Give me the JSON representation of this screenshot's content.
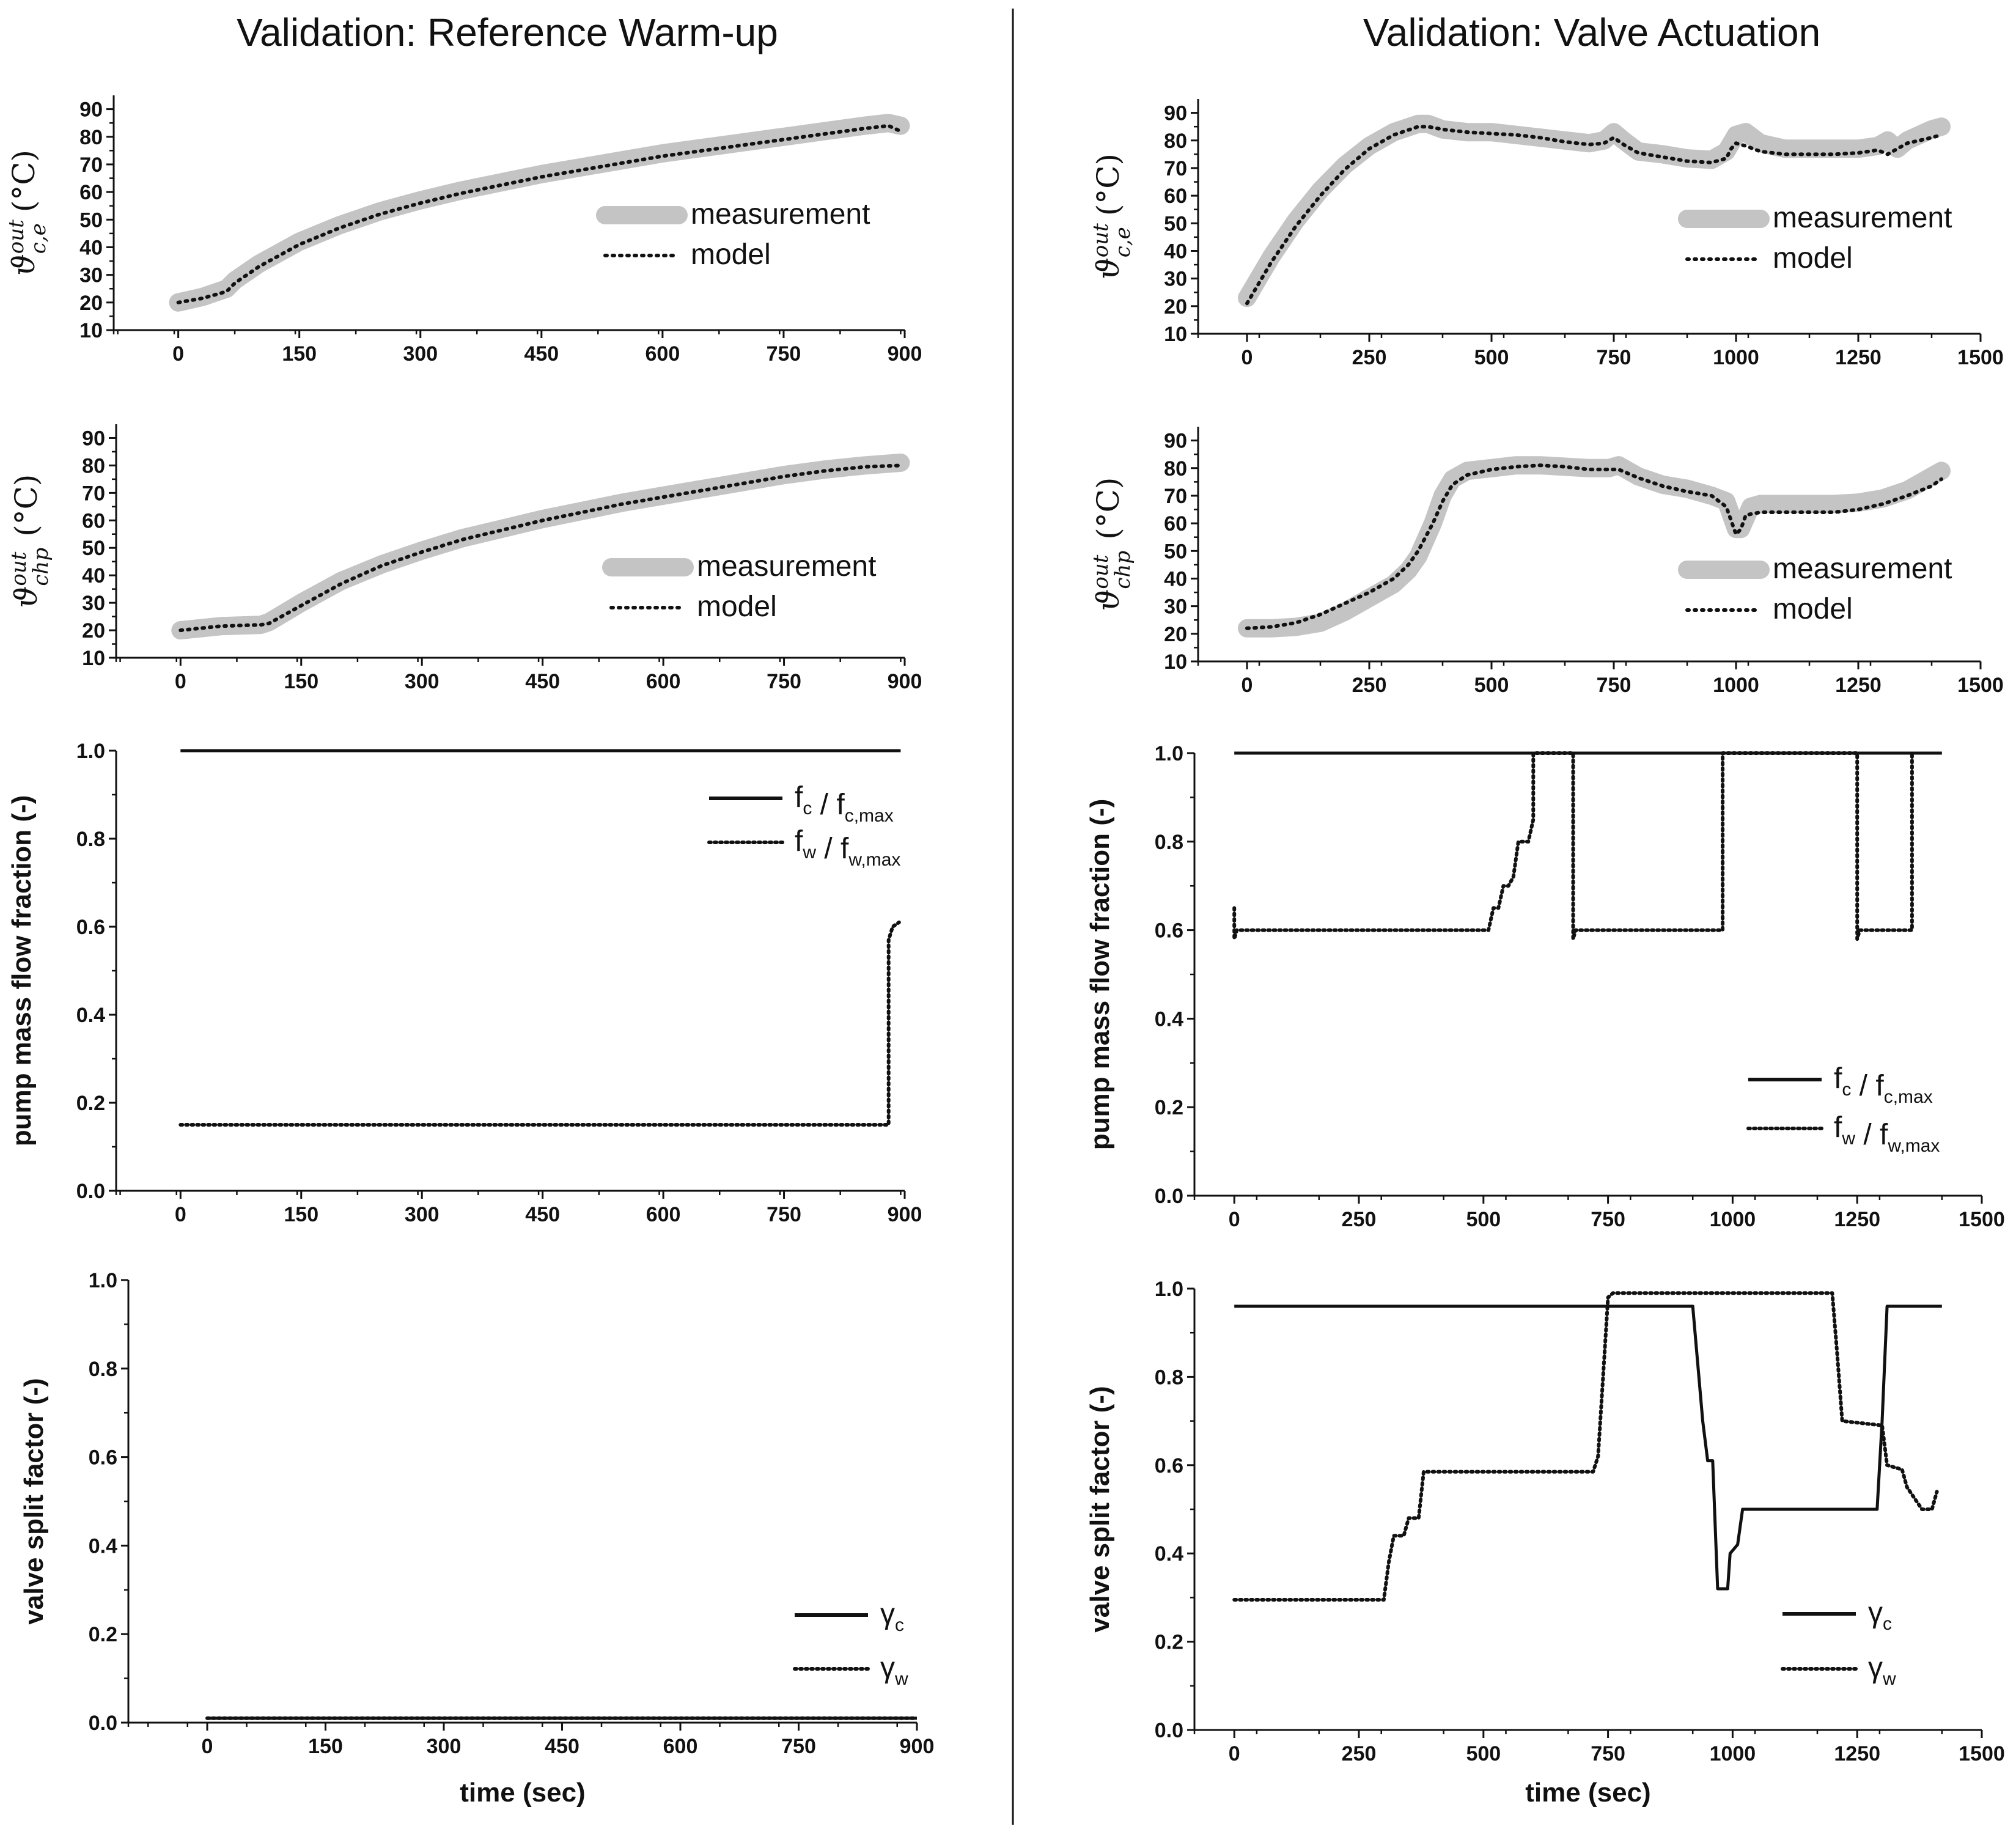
{
  "columns": [
    {
      "title": "Validation: Reference Warm-up"
    },
    {
      "title": "Validation: Valve Actuation"
    }
  ],
  "xlabel": "time (sec)",
  "chart_data": [
    {
      "id": "left-temp-ce",
      "type": "line",
      "column": 0,
      "row": 0,
      "ylabel": {
        "main": "ϑ",
        "sub": "c,e",
        "sup": "out",
        "unit": "(°C)"
      },
      "xlim": [
        -80,
        900
      ],
      "ylim": [
        10,
        95
      ],
      "xticks": [
        0,
        150,
        300,
        450,
        600,
        750,
        900
      ],
      "yticks": [
        10,
        20,
        30,
        40,
        50,
        60,
        70,
        80,
        90
      ],
      "legend": {
        "position": "right",
        "entries": [
          "measurement",
          "model"
        ]
      },
      "series": [
        {
          "name": "measurement",
          "style": "measurement",
          "x": [
            0,
            30,
            60,
            70,
            100,
            150,
            200,
            250,
            300,
            350,
            400,
            450,
            500,
            550,
            600,
            650,
            700,
            750,
            800,
            850,
            880,
            895
          ],
          "y": [
            20,
            22,
            25,
            28,
            34,
            42,
            48,
            53,
            57,
            60.5,
            63.5,
            66.5,
            69,
            71.5,
            74,
            76,
            78,
            80,
            82,
            84,
            85,
            84
          ]
        },
        {
          "name": "model",
          "style": "model",
          "x": [
            0,
            30,
            60,
            70,
            100,
            150,
            200,
            250,
            300,
            350,
            400,
            450,
            500,
            550,
            600,
            650,
            700,
            750,
            800,
            850,
            880,
            895
          ],
          "y": [
            20,
            21.5,
            24,
            27,
            33,
            41,
            47,
            52,
            56,
            59.5,
            62.5,
            65.5,
            68,
            70.5,
            73,
            75,
            77,
            79,
            81,
            83,
            84,
            82
          ]
        }
      ]
    },
    {
      "id": "left-temp-chp",
      "type": "line",
      "column": 0,
      "row": 1,
      "ylabel": {
        "main": "ϑ",
        "sub": "chp",
        "sup": "out",
        "unit": "(°C)"
      },
      "xlim": [
        -80,
        900
      ],
      "ylim": [
        10,
        95
      ],
      "xticks": [
        0,
        150,
        300,
        450,
        600,
        750,
        900
      ],
      "yticks": [
        10,
        20,
        30,
        40,
        50,
        60,
        70,
        80,
        90
      ],
      "legend": {
        "position": "right",
        "entries": [
          "measurement",
          "model"
        ]
      },
      "series": [
        {
          "name": "measurement",
          "style": "measurement",
          "x": [
            0,
            50,
            100,
            110,
            150,
            200,
            250,
            300,
            350,
            400,
            450,
            500,
            550,
            600,
            650,
            700,
            750,
            800,
            850,
            895
          ],
          "y": [
            20,
            21.5,
            22,
            23,
            30,
            38,
            44,
            49,
            53.5,
            57,
            60.5,
            63.5,
            66.5,
            69,
            71.5,
            74,
            76.5,
            78.5,
            80,
            81
          ]
        },
        {
          "name": "model",
          "style": "model",
          "x": [
            0,
            50,
            100,
            110,
            150,
            200,
            250,
            300,
            350,
            400,
            450,
            500,
            550,
            600,
            650,
            700,
            750,
            800,
            850,
            895
          ],
          "y": [
            20,
            21.5,
            22,
            22.5,
            29,
            37,
            43.5,
            48.5,
            53,
            56.5,
            60,
            63,
            66,
            68.5,
            71,
            73.5,
            76,
            78,
            79.5,
            80
          ]
        }
      ]
    },
    {
      "id": "left-pump",
      "type": "line",
      "column": 0,
      "row": 2,
      "ylabel": {
        "main": "pump mass flow fraction (-)"
      },
      "xlim": [
        -80,
        900
      ],
      "ylim": [
        0,
        1.0
      ],
      "xticks": [
        0,
        150,
        300,
        450,
        600,
        750,
        900
      ],
      "yticks": [
        0.0,
        0.2,
        0.4,
        0.6,
        0.8,
        1.0
      ],
      "legend": {
        "position": "top-right",
        "entries": [
          "f_c / f_c,max",
          "f_w / f_w,max"
        ]
      },
      "series": [
        {
          "name": "f_c / f_c,max",
          "style": "solid",
          "x": [
            0,
            895
          ],
          "y": [
            1.0,
            1.0
          ]
        },
        {
          "name": "f_w / f_w,max",
          "style": "dotted",
          "x": [
            0,
            880,
            880,
            885,
            893
          ],
          "y": [
            0.15,
            0.15,
            0.57,
            0.6,
            0.61
          ]
        }
      ]
    },
    {
      "id": "left-valve",
      "type": "line",
      "column": 0,
      "row": 3,
      "ylabel": {
        "main": "valve split factor (-)"
      },
      "xlim": [
        -100,
        900
      ],
      "ylim": [
        0,
        1.0
      ],
      "xticks": [
        0,
        150,
        300,
        450,
        600,
        750,
        900
      ],
      "yticks": [
        0.0,
        0.2,
        0.4,
        0.6,
        0.8,
        1.0
      ],
      "legend": {
        "position": "bottom-right",
        "entries": [
          "γc",
          "γw"
        ]
      },
      "series": [
        {
          "name": "γc",
          "style": "solid",
          "x": [
            0,
            900
          ],
          "y": [
            0.01,
            0.01
          ]
        },
        {
          "name": "γw",
          "style": "dotted",
          "x": [
            0,
            900
          ],
          "y": [
            0.01,
            0.01
          ]
        }
      ]
    },
    {
      "id": "right-temp-ce",
      "type": "line",
      "column": 1,
      "row": 0,
      "ylabel": {
        "main": "ϑ",
        "sub": "c,e",
        "sup": "out",
        "unit": "(°C)"
      },
      "xlim": [
        -100,
        1500
      ],
      "ylim": [
        10,
        95
      ],
      "xticks": [
        0,
        250,
        500,
        750,
        1000,
        1250,
        1500
      ],
      "yticks": [
        10,
        20,
        30,
        40,
        50,
        60,
        70,
        80,
        90
      ],
      "legend": {
        "position": "right",
        "entries": [
          "measurement",
          "model"
        ]
      },
      "series": [
        {
          "name": "measurement",
          "style": "measurement",
          "x": [
            0,
            50,
            100,
            150,
            200,
            250,
            300,
            350,
            370,
            400,
            450,
            500,
            550,
            600,
            650,
            700,
            730,
            750,
            770,
            800,
            850,
            900,
            950,
            980,
            1000,
            1020,
            1050,
            1100,
            1150,
            1200,
            1250,
            1290,
            1310,
            1330,
            1350,
            1400,
            1420
          ],
          "y": [
            23,
            38,
            51,
            62,
            71,
            78,
            83,
            86,
            86,
            84,
            83,
            83,
            82,
            81,
            80,
            79,
            80,
            83,
            80,
            76,
            75,
            73.5,
            73,
            76,
            82,
            83,
            79,
            77,
            77,
            77,
            77,
            78,
            80,
            77,
            80,
            84,
            85
          ]
        },
        {
          "name": "model",
          "style": "model",
          "x": [
            0,
            50,
            100,
            150,
            200,
            250,
            300,
            350,
            370,
            400,
            450,
            500,
            550,
            600,
            650,
            700,
            730,
            750,
            770,
            800,
            850,
            900,
            950,
            980,
            990,
            1000,
            1020,
            1050,
            1100,
            1150,
            1200,
            1250,
            1290,
            1310,
            1330,
            1350,
            1400,
            1420
          ],
          "y": [
            21,
            36,
            49,
            60,
            69.5,
            77,
            82,
            85,
            85,
            84,
            83,
            82.5,
            82,
            81,
            79.5,
            78.5,
            79,
            81,
            78.5,
            75.5,
            74,
            72.5,
            72,
            73.5,
            77,
            79,
            78,
            76,
            75,
            75,
            75,
            75.5,
            76.5,
            75,
            77,
            79,
            81,
            82
          ]
        }
      ]
    },
    {
      "id": "right-temp-chp",
      "type": "line",
      "column": 1,
      "row": 1,
      "ylabel": {
        "main": "ϑ",
        "sub": "chp",
        "sup": "out",
        "unit": "(°C)"
      },
      "xlim": [
        -100,
        1500
      ],
      "ylim": [
        10,
        95
      ],
      "xticks": [
        0,
        250,
        500,
        750,
        1000,
        1250,
        1500
      ],
      "yticks": [
        10,
        20,
        30,
        40,
        50,
        60,
        70,
        80,
        90
      ],
      "legend": {
        "position": "right",
        "entries": [
          "measurement",
          "model"
        ]
      },
      "series": [
        {
          "name": "measurement",
          "style": "measurement",
          "x": [
            0,
            50,
            100,
            150,
            200,
            250,
            300,
            330,
            350,
            380,
            400,
            420,
            450,
            500,
            550,
            600,
            650,
            700,
            740,
            760,
            800,
            850,
            900,
            950,
            980,
            1000,
            1010,
            1030,
            1050,
            1100,
            1150,
            1200,
            1250,
            1300,
            1350,
            1400,
            1420
          ],
          "y": [
            22,
            22,
            22.5,
            24,
            28,
            33,
            38,
            43,
            48,
            60,
            70,
            76,
            79,
            80,
            81,
            81,
            80.5,
            80,
            80,
            81,
            77,
            74,
            72.5,
            70,
            68,
            58,
            58,
            66,
            67,
            67,
            67,
            67,
            67.5,
            69,
            72,
            77,
            79
          ]
        },
        {
          "name": "model",
          "style": "model",
          "x": [
            0,
            50,
            100,
            150,
            200,
            250,
            300,
            330,
            350,
            380,
            400,
            420,
            450,
            500,
            550,
            600,
            650,
            700,
            740,
            760,
            800,
            850,
            900,
            950,
            980,
            1000,
            1010,
            1020,
            1050,
            1100,
            1150,
            1200,
            1250,
            1300,
            1350,
            1400,
            1420
          ],
          "y": [
            22,
            22.5,
            24,
            27,
            31,
            35,
            40,
            45,
            50,
            60,
            68,
            74,
            77.5,
            79.5,
            80.5,
            81,
            80.5,
            79.5,
            79.5,
            79.5,
            76.5,
            73.5,
            71.5,
            70,
            66,
            56,
            58,
            63,
            64,
            64,
            64,
            64,
            65,
            67,
            70,
            73.5,
            76
          ]
        }
      ]
    },
    {
      "id": "right-pump",
      "type": "line",
      "column": 1,
      "row": 2,
      "ylabel": {
        "main": "pump mass flow fraction (-)"
      },
      "xlim": [
        -80,
        1500
      ],
      "ylim": [
        0,
        1.0
      ],
      "xticks": [
        0,
        250,
        500,
        750,
        1000,
        1250,
        1500
      ],
      "yticks": [
        0.0,
        0.2,
        0.4,
        0.6,
        0.8,
        1.0
      ],
      "legend": {
        "position": "lower-right",
        "entries": [
          "f_c / f_c,max",
          "f_w / f_w,max"
        ]
      },
      "series": [
        {
          "name": "f_c / f_c,max",
          "style": "solid",
          "x": [
            0,
            1420
          ],
          "y": [
            1.0,
            1.0
          ]
        },
        {
          "name": "f_w / f_w,max",
          "style": "dotted",
          "x": [
            0,
            0,
            5,
            510,
            520,
            530,
            540,
            550,
            560,
            570,
            580,
            590,
            600,
            600,
            680,
            680,
            685,
            980,
            980,
            1250,
            1250,
            1255,
            1360,
            1360
          ],
          "y": [
            0.65,
            0.58,
            0.6,
            0.6,
            0.65,
            0.65,
            0.7,
            0.7,
            0.72,
            0.8,
            0.8,
            0.8,
            0.85,
            1.0,
            1.0,
            0.58,
            0.6,
            0.6,
            1.0,
            1.0,
            0.58,
            0.6,
            0.6,
            1.0
          ]
        }
      ]
    },
    {
      "id": "right-valve",
      "type": "line",
      "column": 1,
      "row": 3,
      "ylabel": {
        "main": "valve split factor (-)"
      },
      "xlim": [
        -80,
        1500
      ],
      "ylim": [
        0,
        1.0
      ],
      "xticks": [
        0,
        250,
        500,
        750,
        1000,
        1250,
        1500
      ],
      "yticks": [
        0.0,
        0.2,
        0.4,
        0.6,
        0.8,
        1.0
      ],
      "legend": {
        "position": "bottom-right",
        "entries": [
          "γc",
          "γw"
        ]
      },
      "series": [
        {
          "name": "γc",
          "style": "solid",
          "x": [
            0,
            920,
            940,
            950,
            960,
            970,
            990,
            995,
            1010,
            1020,
            1290,
            1300,
            1310,
            1320,
            1420
          ],
          "y": [
            0.96,
            0.96,
            0.7,
            0.61,
            0.61,
            0.32,
            0.32,
            0.4,
            0.42,
            0.5,
            0.5,
            0.7,
            0.96,
            0.96,
            0.96
          ]
        },
        {
          "name": "γw",
          "style": "dotted",
          "x": [
            0,
            300,
            310,
            320,
            340,
            350,
            370,
            380,
            720,
            730,
            740,
            750,
            760,
            1200,
            1210,
            1220,
            1300,
            1310,
            1340,
            1350,
            1380,
            1400,
            1410
          ],
          "y": [
            0.295,
            0.295,
            0.38,
            0.44,
            0.44,
            0.48,
            0.48,
            0.585,
            0.585,
            0.62,
            0.8,
            0.98,
            0.99,
            0.99,
            0.85,
            0.7,
            0.69,
            0.6,
            0.59,
            0.55,
            0.5,
            0.5,
            0.54
          ]
        }
      ]
    }
  ]
}
